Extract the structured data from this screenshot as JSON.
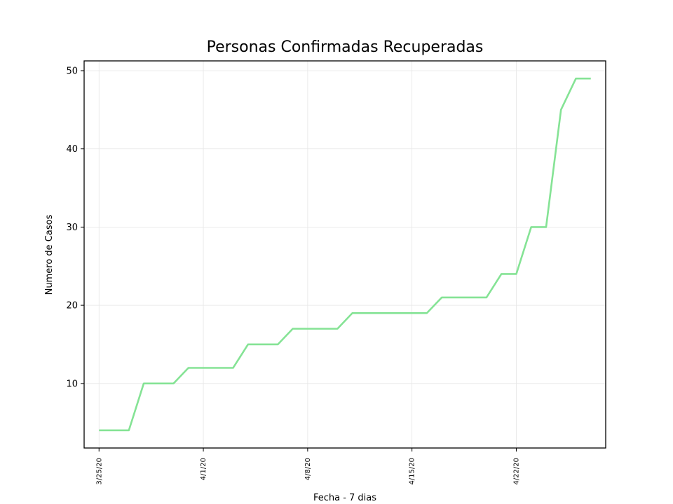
{
  "chart_data": {
    "type": "line",
    "title": "Personas Confirmadas Recuperadas",
    "xlabel": "Fecha - 7 dias",
    "ylabel": "Numero de Casos",
    "x_dates": [
      "3/25/20",
      "3/26/20",
      "3/27/20",
      "3/28/20",
      "3/29/20",
      "3/30/20",
      "3/31/20",
      "4/1/20",
      "4/2/20",
      "4/3/20",
      "4/4/20",
      "4/5/20",
      "4/6/20",
      "4/7/20",
      "4/8/20",
      "4/9/20",
      "4/10/20",
      "4/11/20",
      "4/12/20",
      "4/13/20",
      "4/14/20",
      "4/15/20",
      "4/16/20",
      "4/17/20",
      "4/18/20",
      "4/19/20",
      "4/20/20",
      "4/21/20",
      "4/22/20",
      "4/23/20",
      "4/24/20",
      "4/25/20",
      "4/26/20",
      "4/27/20"
    ],
    "series": [
      {
        "values": [
          4,
          4,
          4,
          10,
          10,
          10,
          12,
          12,
          12,
          12,
          15,
          15,
          15,
          17,
          17,
          17,
          17,
          19,
          19,
          19,
          19,
          19,
          19,
          21,
          21,
          21,
          21,
          24,
          24,
          30,
          30,
          45,
          49,
          49
        ],
        "color": "#85e395"
      }
    ],
    "xticks": [
      "3/25/20",
      "4/1/20",
      "4/8/20",
      "4/15/20",
      "4/22/20"
    ],
    "yticks": [
      10,
      20,
      30,
      40,
      50
    ],
    "xlim": [
      "3/24/20",
      "4/28/20"
    ],
    "ylim": [
      1.75,
      51.25
    ],
    "grid": true
  }
}
